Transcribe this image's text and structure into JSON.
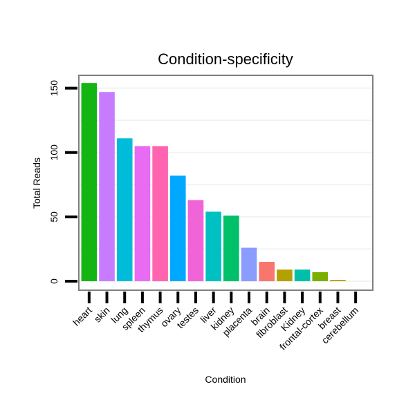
{
  "chart_data": {
    "type": "bar",
    "title": "Condition-specificity",
    "xlabel": "Condition",
    "ylabel": "Total Reads",
    "ylim": [
      -7,
      160
    ],
    "yticks": [
      0,
      50,
      100,
      150
    ],
    "grid": true,
    "categories": [
      "heart",
      "skin",
      "lung",
      "spleen",
      "thymus",
      "ovary",
      "testes",
      "liver",
      "kidney",
      "placenta",
      "brain",
      "fibroblast",
      "Kidney",
      "frontal-cortex",
      "breast",
      "cerebellum"
    ],
    "values": [
      154,
      147,
      111,
      105,
      105,
      82,
      63,
      54,
      51,
      26,
      15,
      9,
      9,
      7,
      1,
      0
    ],
    "colors": [
      "#13b513",
      "#c77cff",
      "#00bcd8",
      "#e76bf3",
      "#ff64b0",
      "#00a9ff",
      "#f064d8",
      "#00c1c1",
      "#00c06a",
      "#8b9cff",
      "#f8766d",
      "#b2a100",
      "#00bfaa",
      "#7cae00",
      "#c09b00",
      "#7cae00"
    ]
  }
}
